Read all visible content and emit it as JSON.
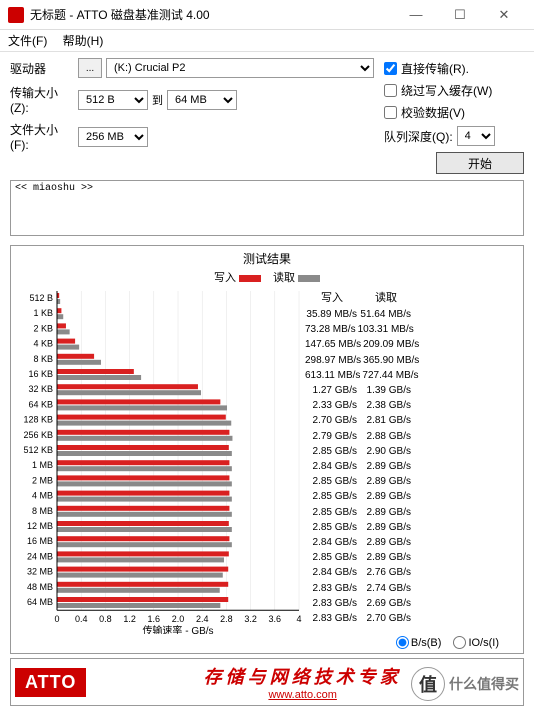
{
  "window": {
    "title": "无标题 - ATTO 磁盘基准测试 4.00",
    "min": "—",
    "max": "☐",
    "close": "✕"
  },
  "menu": {
    "file": "文件(F)",
    "help": "帮助(H)"
  },
  "form": {
    "drive_label": "驱动器",
    "browse": "...",
    "drive_value": "(K:) Crucial P2",
    "transfer_label": "传输大小(Z):",
    "transfer_from": "512 B",
    "to_label": "到",
    "transfer_to": "64 MB",
    "file_label": "文件大小(F):",
    "file_size": "256 MB",
    "direct_io": "直接传输(R).",
    "bypass_cache": "绕过写入缓存(W)",
    "verify_data": "校验数据(V)",
    "queue_label": "队列深度(Q):",
    "queue_value": "4",
    "start": "开始",
    "desc": "<< miaoshu >>"
  },
  "chart": {
    "title": "测试结果",
    "write_label": "写入",
    "read_label": "读取",
    "write_color": "#d92020",
    "read_color": "#8a8a8a",
    "grid_color": "#e0e0e0",
    "axis_color": "#000",
    "max_gb": 4.0,
    "xticks": [
      "0",
      "0.4",
      "0.8",
      "1.2",
      "1.6",
      "2.0",
      "2.4",
      "2.8",
      "3.2",
      "3.6",
      "4"
    ],
    "xlabel": "传输速率 - GB/s",
    "rows": [
      {
        "label": "512 B",
        "write_gb": 0.036,
        "read_gb": 0.052,
        "write_txt": "35.89 MB/s",
        "read_txt": "51.64 MB/s"
      },
      {
        "label": "1 KB",
        "write_gb": 0.073,
        "read_gb": 0.103,
        "write_txt": "73.28 MB/s",
        "read_txt": "103.31 MB/s"
      },
      {
        "label": "2 KB",
        "write_gb": 0.148,
        "read_gb": 0.209,
        "write_txt": "147.65 MB/s",
        "read_txt": "209.09 MB/s"
      },
      {
        "label": "4 KB",
        "write_gb": 0.299,
        "read_gb": 0.366,
        "write_txt": "298.97 MB/s",
        "read_txt": "365.90 MB/s"
      },
      {
        "label": "8 KB",
        "write_gb": 0.613,
        "read_gb": 0.727,
        "write_txt": "613.11 MB/s",
        "read_txt": "727.44 MB/s"
      },
      {
        "label": "16 KB",
        "write_gb": 1.27,
        "read_gb": 1.39,
        "write_txt": "1.27 GB/s",
        "read_txt": "1.39 GB/s"
      },
      {
        "label": "32 KB",
        "write_gb": 2.33,
        "read_gb": 2.38,
        "write_txt": "2.33 GB/s",
        "read_txt": "2.38 GB/s"
      },
      {
        "label": "64 KB",
        "write_gb": 2.7,
        "read_gb": 2.81,
        "write_txt": "2.70 GB/s",
        "read_txt": "2.81 GB/s"
      },
      {
        "label": "128 KB",
        "write_gb": 2.79,
        "read_gb": 2.88,
        "write_txt": "2.79 GB/s",
        "read_txt": "2.88 GB/s"
      },
      {
        "label": "256 KB",
        "write_gb": 2.85,
        "read_gb": 2.9,
        "write_txt": "2.85 GB/s",
        "read_txt": "2.90 GB/s"
      },
      {
        "label": "512 KB",
        "write_gb": 2.84,
        "read_gb": 2.89,
        "write_txt": "2.84 GB/s",
        "read_txt": "2.89 GB/s"
      },
      {
        "label": "1 MB",
        "write_gb": 2.85,
        "read_gb": 2.89,
        "write_txt": "2.85 GB/s",
        "read_txt": "2.89 GB/s"
      },
      {
        "label": "2 MB",
        "write_gb": 2.85,
        "read_gb": 2.89,
        "write_txt": "2.85 GB/s",
        "read_txt": "2.89 GB/s"
      },
      {
        "label": "4 MB",
        "write_gb": 2.85,
        "read_gb": 2.89,
        "write_txt": "2.85 GB/s",
        "read_txt": "2.89 GB/s"
      },
      {
        "label": "8 MB",
        "write_gb": 2.85,
        "read_gb": 2.89,
        "write_txt": "2.85 GB/s",
        "read_txt": "2.89 GB/s"
      },
      {
        "label": "12 MB",
        "write_gb": 2.84,
        "read_gb": 2.89,
        "write_txt": "2.84 GB/s",
        "read_txt": "2.89 GB/s"
      },
      {
        "label": "16 MB",
        "write_gb": 2.85,
        "read_gb": 2.89,
        "write_txt": "2.85 GB/s",
        "read_txt": "2.89 GB/s"
      },
      {
        "label": "24 MB",
        "write_gb": 2.84,
        "read_gb": 2.76,
        "write_txt": "2.84 GB/s",
        "read_txt": "2.76 GB/s"
      },
      {
        "label": "32 MB",
        "write_gb": 2.83,
        "read_gb": 2.74,
        "write_txt": "2.83 GB/s",
        "read_txt": "2.74 GB/s"
      },
      {
        "label": "48 MB",
        "write_gb": 2.83,
        "read_gb": 2.69,
        "write_txt": "2.83 GB/s",
        "read_txt": "2.69 GB/s"
      },
      {
        "label": "64 MB",
        "write_gb": 2.83,
        "read_gb": 2.7,
        "write_txt": "2.83 GB/s",
        "read_txt": "2.70 GB/s"
      }
    ],
    "write_hdr": "写入",
    "read_hdr": "读取",
    "radio_bs": "B/s(B)",
    "radio_ios": "IO/s(I)"
  },
  "footer": {
    "logo": "ATTO",
    "tagline": "存储与网络技术专家",
    "url": "www.atto.com",
    "wm_badge": "值",
    "wm_text": "什么值得买"
  }
}
